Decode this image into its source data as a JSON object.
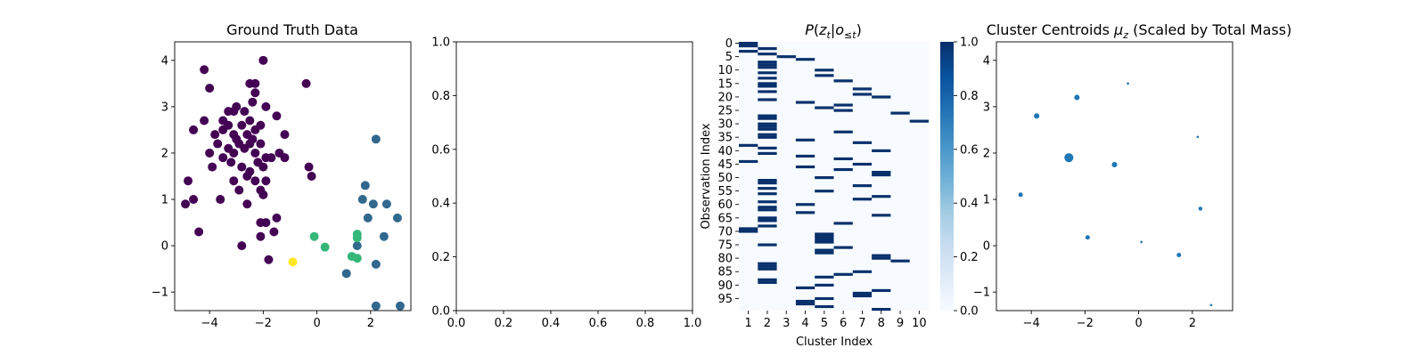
{
  "chart_data": [
    {
      "type": "scatter",
      "title": "Ground Truth Data",
      "xlim": [
        -5.3,
        3.5
      ],
      "ylim": [
        -1.4,
        4.4
      ],
      "xticks": [
        -4,
        -2,
        0,
        2
      ],
      "yticks": [
        -1,
        0,
        1,
        2,
        3,
        4
      ],
      "xtick_labels": [
        "−4",
        "−2",
        "0",
        "2"
      ],
      "ytick_labels": [
        "−1",
        "0",
        "1",
        "2",
        "3",
        "4"
      ],
      "colormap": "viridis",
      "colors": {
        "0": "#440154",
        "1": "#31688e",
        "2": "#35b779",
        "3": "#fde725"
      },
      "points": [
        {
          "x": -4.2,
          "y": 3.8,
          "c": 0
        },
        {
          "x": -4.0,
          "y": 3.4,
          "c": 0
        },
        {
          "x": -3.5,
          "y": 2.7,
          "c": 0
        },
        {
          "x": -3.3,
          "y": 2.9,
          "c": 0
        },
        {
          "x": -3.1,
          "y": 2.9,
          "c": 0
        },
        {
          "x": -3.0,
          "y": 3.0,
          "c": 0
        },
        {
          "x": -2.5,
          "y": 3.5,
          "c": 0
        },
        {
          "x": -2.3,
          "y": 3.5,
          "c": 0
        },
        {
          "x": -2.3,
          "y": 3.3,
          "c": 0
        },
        {
          "x": -2.4,
          "y": 3.1,
          "c": 0
        },
        {
          "x": -2.0,
          "y": 4.0,
          "c": 0
        },
        {
          "x": -0.4,
          "y": 3.5,
          "c": 0
        },
        {
          "x": -4.6,
          "y": 2.5,
          "c": 0
        },
        {
          "x": -4.2,
          "y": 2.7,
          "c": 0
        },
        {
          "x": -3.8,
          "y": 2.4,
          "c": 0
        },
        {
          "x": -3.5,
          "y": 2.5,
          "c": 0
        },
        {
          "x": -3.3,
          "y": 2.6,
          "c": 0
        },
        {
          "x": -3.1,
          "y": 2.4,
          "c": 0
        },
        {
          "x": -2.8,
          "y": 2.6,
          "c": 0
        },
        {
          "x": -2.6,
          "y": 2.4,
          "c": 0
        },
        {
          "x": -2.5,
          "y": 2.7,
          "c": 0
        },
        {
          "x": -2.3,
          "y": 2.5,
          "c": 0
        },
        {
          "x": -2.1,
          "y": 2.6,
          "c": 0
        },
        {
          "x": -1.9,
          "y": 3.0,
          "c": 0
        },
        {
          "x": -1.5,
          "y": 2.8,
          "c": 0
        },
        {
          "x": -1.2,
          "y": 2.4,
          "c": 0
        },
        {
          "x": -4.0,
          "y": 2.0,
          "c": 0
        },
        {
          "x": -3.7,
          "y": 2.2,
          "c": 0
        },
        {
          "x": -3.5,
          "y": 1.9,
          "c": 0
        },
        {
          "x": -3.3,
          "y": 2.1,
          "c": 0
        },
        {
          "x": -3.1,
          "y": 2.0,
          "c": 0
        },
        {
          "x": -2.9,
          "y": 2.2,
          "c": 0
        },
        {
          "x": -2.7,
          "y": 2.1,
          "c": 0
        },
        {
          "x": -2.5,
          "y": 2.2,
          "c": 0
        },
        {
          "x": -2.3,
          "y": 2.0,
          "c": 0
        },
        {
          "x": -2.1,
          "y": 2.2,
          "c": 0
        },
        {
          "x": -1.9,
          "y": 1.9,
          "c": 0
        },
        {
          "x": -1.7,
          "y": 1.9,
          "c": 0
        },
        {
          "x": -1.4,
          "y": 2.0,
          "c": 0
        },
        {
          "x": -1.2,
          "y": 1.9,
          "c": 0
        },
        {
          "x": -3.9,
          "y": 1.7,
          "c": 0
        },
        {
          "x": -3.2,
          "y": 1.8,
          "c": 0
        },
        {
          "x": -2.8,
          "y": 1.7,
          "c": 0
        },
        {
          "x": -2.5,
          "y": 1.6,
          "c": 0
        },
        {
          "x": -2.2,
          "y": 1.8,
          "c": 0
        },
        {
          "x": -2.0,
          "y": 1.7,
          "c": 0
        },
        {
          "x": -0.3,
          "y": 1.7,
          "c": 0
        },
        {
          "x": -0.2,
          "y": 1.5,
          "c": 0
        },
        {
          "x": -4.8,
          "y": 1.4,
          "c": 0
        },
        {
          "x": -3.1,
          "y": 1.4,
          "c": 0
        },
        {
          "x": -2.6,
          "y": 1.5,
          "c": 0
        },
        {
          "x": -2.3,
          "y": 1.4,
          "c": 0
        },
        {
          "x": -1.9,
          "y": 1.4,
          "c": 0
        },
        {
          "x": -2.9,
          "y": 1.2,
          "c": 0
        },
        {
          "x": -2.1,
          "y": 1.2,
          "c": 0
        },
        {
          "x": -4.9,
          "y": 0.9,
          "c": 0
        },
        {
          "x": -4.6,
          "y": 1.0,
          "c": 0
        },
        {
          "x": -3.6,
          "y": 1.0,
          "c": 0
        },
        {
          "x": -2.6,
          "y": 0.9,
          "c": 0
        },
        {
          "x": -2.0,
          "y": 1.1,
          "c": 0
        },
        {
          "x": -2.1,
          "y": 0.5,
          "c": 0
        },
        {
          "x": -1.9,
          "y": 0.5,
          "c": 0
        },
        {
          "x": -1.5,
          "y": 0.6,
          "c": 0
        },
        {
          "x": -2.1,
          "y": 0.2,
          "c": 0
        },
        {
          "x": -1.6,
          "y": 0.3,
          "c": 0
        },
        {
          "x": -4.4,
          "y": 0.3,
          "c": 0
        },
        {
          "x": -2.8,
          "y": 0.0,
          "c": 0
        },
        {
          "x": -1.8,
          "y": -0.3,
          "c": 0
        },
        {
          "x": -2.7,
          "y": 2.9,
          "c": 0
        },
        {
          "x": -3.0,
          "y": 2.3,
          "c": 0
        },
        {
          "x": -2.4,
          "y": 2.3,
          "c": 0
        },
        {
          "x": 2.2,
          "y": 2.3,
          "c": 1
        },
        {
          "x": 1.8,
          "y": 1.3,
          "c": 1
        },
        {
          "x": 1.7,
          "y": 1.0,
          "c": 1
        },
        {
          "x": 2.1,
          "y": 0.9,
          "c": 1
        },
        {
          "x": 2.6,
          "y": 0.9,
          "c": 1
        },
        {
          "x": 1.9,
          "y": 0.6,
          "c": 1
        },
        {
          "x": 3.0,
          "y": 0.6,
          "c": 1
        },
        {
          "x": 2.5,
          "y": 0.2,
          "c": 1
        },
        {
          "x": 1.5,
          "y": 0.0,
          "c": 1
        },
        {
          "x": 2.2,
          "y": -0.4,
          "c": 1
        },
        {
          "x": 1.1,
          "y": -0.6,
          "c": 1
        },
        {
          "x": 2.2,
          "y": -1.3,
          "c": 1
        },
        {
          "x": 3.1,
          "y": -1.3,
          "c": 1
        },
        {
          "x": -0.1,
          "y": 0.2,
          "c": 2
        },
        {
          "x": 0.3,
          "y": -0.03,
          "c": 2
        },
        {
          "x": 1.5,
          "y": 0.25,
          "c": 2
        },
        {
          "x": 1.5,
          "y": 0.17,
          "c": 2
        },
        {
          "x": 1.3,
          "y": -0.23,
          "c": 2
        },
        {
          "x": 1.5,
          "y": -0.27,
          "c": 2
        },
        {
          "x": -0.9,
          "y": -0.35,
          "c": 3
        }
      ]
    },
    {
      "type": "scatter",
      "title": "",
      "xlim": [
        0,
        1
      ],
      "ylim": [
        0,
        1
      ],
      "xticks": [
        0,
        0.2,
        0.4,
        0.6,
        0.8,
        1.0
      ],
      "yticks": [
        0,
        0.2,
        0.4,
        0.6,
        0.8,
        1.0
      ],
      "xtick_labels": [
        "0.0",
        "0.2",
        "0.4",
        "0.6",
        "0.8",
        "1.0"
      ],
      "ytick_labels": [
        "0.0",
        "0.2",
        "0.4",
        "0.6",
        "0.8",
        "1.0"
      ],
      "points": []
    },
    {
      "type": "heatmap",
      "title": "P(z_t|o_{≤t})",
      "xlabel": "Cluster Index",
      "ylabel": "Observation Index",
      "x_categories": [
        "1",
        "2",
        "3",
        "4",
        "5",
        "6",
        "7",
        "8",
        "9",
        "10"
      ],
      "yticks": [
        0,
        5,
        10,
        15,
        20,
        25,
        30,
        35,
        40,
        45,
        50,
        55,
        60,
        65,
        70,
        75,
        80,
        85,
        90,
        95
      ],
      "ytick_labels": [
        "0",
        "5",
        "10",
        "15",
        "20",
        "25",
        "30",
        "35",
        "40",
        "45",
        "50",
        "55",
        "60",
        "65",
        "70",
        "75",
        "80",
        "85",
        "90",
        "95"
      ],
      "n_rows": 100,
      "colormap": "Blues",
      "vmin": 0,
      "vmax": 1,
      "colorbar_ticks": [
        0.0,
        0.2,
        0.4,
        0.6,
        0.8,
        1.0
      ],
      "colorbar_tick_labels": [
        "0.0",
        "0.2",
        "0.4",
        "0.6",
        "0.8",
        "1.0"
      ],
      "colors": {
        "high": "#08306b",
        "low": "#f7fbff"
      },
      "assignments": [
        1,
        1,
        2,
        1,
        2,
        3,
        4,
        2,
        2,
        2,
        5,
        2,
        5,
        2,
        6,
        2,
        2,
        7,
        2,
        7,
        8,
        2,
        4,
        6,
        5,
        6,
        9,
        2,
        2,
        10,
        2,
        2,
        2,
        6,
        2,
        2,
        4,
        7,
        1,
        2,
        8,
        2,
        4,
        6,
        1,
        7,
        4,
        6,
        8,
        8,
        5,
        2,
        2,
        7,
        2,
        5,
        2,
        8,
        7,
        2,
        4,
        2,
        2,
        4,
        8,
        2,
        2,
        6,
        2,
        1,
        1,
        5,
        5,
        5,
        5,
        2,
        6,
        5,
        5,
        8,
        8,
        9,
        2,
        2,
        2,
        7,
        6,
        5,
        2,
        2,
        5,
        4,
        8,
        7,
        7,
        5,
        4,
        4,
        5,
        8
      ]
    },
    {
      "type": "scatter",
      "title": "Cluster Centroids μ_z (Scaled by Total Mass)",
      "xlim": [
        -5.3,
        3.5
      ],
      "ylim": [
        -1.4,
        4.4
      ],
      "xticks": [
        -4,
        -2,
        0,
        2
      ],
      "yticks": [
        -1,
        0,
        1,
        2,
        3,
        4
      ],
      "xtick_labels": [
        "−4",
        "−2",
        "0",
        "2"
      ],
      "ytick_labels": [
        "−1",
        "0",
        "1",
        "2",
        "3",
        "4"
      ],
      "colors": {
        "marker": "#1f77b4"
      },
      "points": [
        {
          "x": -2.6,
          "y": 1.9,
          "mass": 60
        },
        {
          "x": -3.8,
          "y": 2.8,
          "mass": 22
        },
        {
          "x": -2.3,
          "y": 3.2,
          "mass": 22
        },
        {
          "x": -0.9,
          "y": 1.75,
          "mass": 22
        },
        {
          "x": -4.4,
          "y": 1.1,
          "mass": 15
        },
        {
          "x": -1.9,
          "y": 0.18,
          "mass": 15
        },
        {
          "x": 1.5,
          "y": -0.2,
          "mass": 15
        },
        {
          "x": 2.3,
          "y": 0.8,
          "mass": 12
        },
        {
          "x": -0.4,
          "y": 3.5,
          "mass": 4
        },
        {
          "x": 2.2,
          "y": 2.35,
          "mass": 4
        },
        {
          "x": 0.1,
          "y": 0.08,
          "mass": 4
        },
        {
          "x": 2.7,
          "y": -1.28,
          "mass": 4
        }
      ]
    }
  ]
}
